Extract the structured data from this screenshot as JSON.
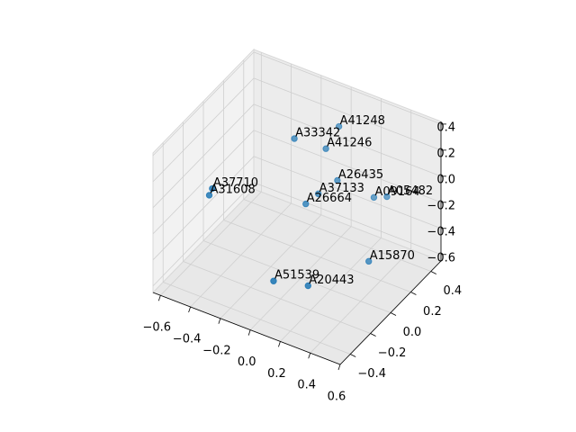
{
  "chart_data": {
    "type": "scatter3d",
    "color": "#1f77b4",
    "labels": [
      "A41248",
      "A33342",
      "A41246",
      "A26435",
      "A37133",
      "A26664",
      "A09164",
      "A05482",
      "A37710",
      "A31608",
      "A15870",
      "A51539",
      "A20443"
    ],
    "x": [
      0.06,
      -0.13,
      0.04,
      0.11,
      0.05,
      0.0,
      0.3,
      0.36,
      -0.49,
      -0.51,
      0.38,
      -0.02,
      0.17
    ],
    "y": [
      0.29,
      0.13,
      0.19,
      0.2,
      0.1,
      0.05,
      0.28,
      0.32,
      -0.15,
      -0.15,
      0.11,
      -0.24,
      -0.18
    ],
    "z": [
      0.31,
      0.26,
      0.21,
      -0.01,
      -0.06,
      -0.12,
      -0.12,
      -0.12,
      -0.06,
      -0.12,
      -0.44,
      -0.49,
      -0.49
    ],
    "xlim": [
      -0.65,
      0.6
    ],
    "ylim": [
      -0.5,
      0.5
    ],
    "zlim": [
      -0.65,
      0.42
    ],
    "xticks": [
      {
        "value": -0.6,
        "label": "−0.6"
      },
      {
        "value": -0.4,
        "label": "−0.4"
      },
      {
        "value": -0.2,
        "label": "−0.2"
      },
      {
        "value": 0,
        "label": "0.0"
      },
      0.2,
      0.4,
      0.6
    ],
    "yticks": [
      {
        "value": -0.4,
        "label": "−0.4"
      },
      {
        "value": -0.2,
        "label": "−0.2"
      },
      {
        "value": 0,
        "label": "0.0"
      },
      0.2,
      0.4
    ],
    "zticks": [
      {
        "value": -0.6,
        "label": "−0.6"
      },
      {
        "value": -0.4,
        "label": "−0.4"
      },
      {
        "value": -0.2,
        "label": "−0.2"
      },
      {
        "value": 0,
        "label": "0.0"
      },
      0.2,
      0.4
    ],
    "grid": true
  }
}
